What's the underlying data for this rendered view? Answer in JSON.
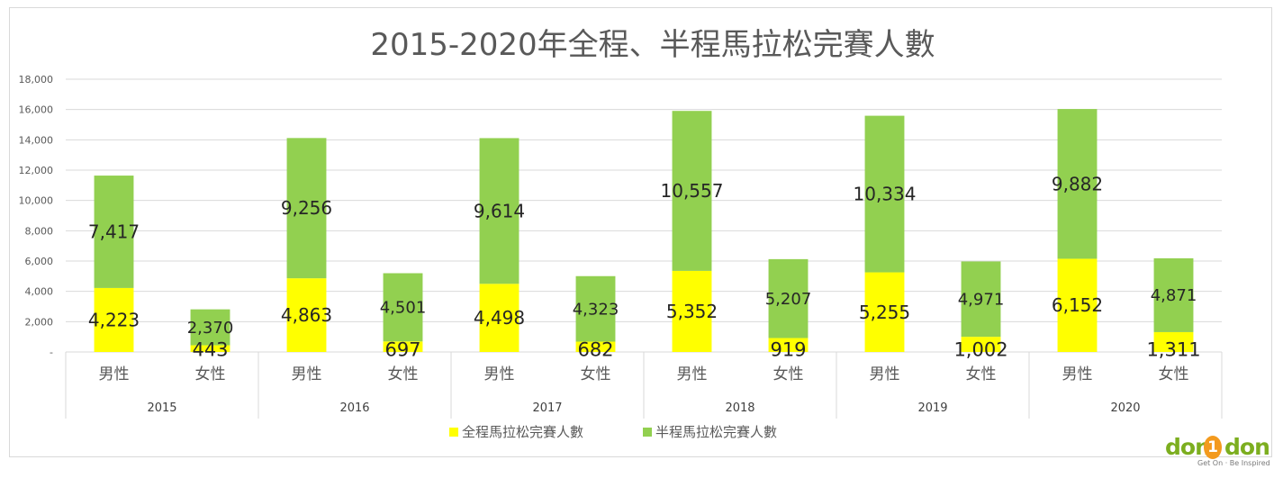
{
  "chart_data": {
    "type": "bar",
    "stacked": true,
    "title": "2015-2020年全程、半程馬拉松完賽人數",
    "ylim": [
      0,
      18000
    ],
    "y_ticks": [
      {
        "value": 0,
        "label": "-"
      },
      {
        "value": 2000,
        "label": "2,000"
      },
      {
        "value": 4000,
        "label": "4,000"
      },
      {
        "value": 6000,
        "label": "6,000"
      },
      {
        "value": 8000,
        "label": "8,000"
      },
      {
        "value": 10000,
        "label": "10,000"
      },
      {
        "value": 12000,
        "label": "12,000"
      },
      {
        "value": 14000,
        "label": "14,000"
      },
      {
        "value": 16000,
        "label": "16,000"
      },
      {
        "value": 18000,
        "label": "18,000"
      }
    ],
    "grid": true,
    "legend_position": "bottom",
    "groups": [
      "2015",
      "2016",
      "2017",
      "2018",
      "2019",
      "2020"
    ],
    "subcategories": [
      "男性",
      "女性"
    ],
    "categories": [
      "2015 男性",
      "2015 女性",
      "2016 男性",
      "2016 女性",
      "2017 男性",
      "2017 女性",
      "2018 男性",
      "2018 女性",
      "2019 男性",
      "2019 女性",
      "2020 男性",
      "2020 女性"
    ],
    "series": [
      {
        "name": "全程馬拉松完賽人數",
        "color": "#ffff00",
        "values": [
          4223,
          443,
          4863,
          697,
          4498,
          682,
          5352,
          919,
          5255,
          1002,
          6152,
          1311
        ],
        "labels": [
          "4,223",
          "443",
          "4,863",
          "697",
          "4,498",
          "682",
          "5,352",
          "919",
          "5,255",
          "1,002",
          "6,152",
          "1,311"
        ]
      },
      {
        "name": "半程馬拉松完賽人數",
        "color": "#92d050",
        "values": [
          7417,
          2370,
          9256,
          4501,
          9614,
          4323,
          10557,
          5207,
          10334,
          4971,
          9882,
          4871
        ],
        "labels": [
          "7,417",
          "2,370",
          "9,256",
          "4,501",
          "9,614",
          "4,323",
          "10,557",
          "5,207",
          "10,334",
          "4,971",
          "9,882",
          "4,871"
        ]
      }
    ]
  },
  "watermark": {
    "word_left": "don",
    "badge": "1",
    "word_right": "don",
    "tagline": "Get On · Be Inspired"
  }
}
